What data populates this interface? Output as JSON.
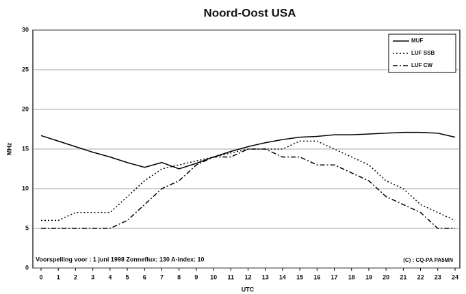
{
  "chart_data": {
    "type": "line",
    "title": "Noord-Oost USA",
    "xlabel": "UTC",
    "ylabel": "MHz",
    "x": [
      0,
      1,
      2,
      3,
      4,
      5,
      6,
      7,
      8,
      9,
      10,
      11,
      12,
      13,
      14,
      15,
      16,
      17,
      18,
      19,
      20,
      21,
      22,
      23,
      24
    ],
    "xlim": [
      0,
      24
    ],
    "xticks": [
      0,
      1,
      2,
      3,
      4,
      5,
      6,
      7,
      8,
      9,
      10,
      11,
      12,
      13,
      14,
      15,
      16,
      17,
      18,
      19,
      20,
      21,
      22,
      23,
      24
    ],
    "ylim": [
      0,
      30
    ],
    "yticks": [
      0,
      5,
      10,
      15,
      20,
      25,
      30
    ],
    "grid": true,
    "legend": "upper right",
    "series": [
      {
        "name": "MUF",
        "color": "#000000",
        "style": "solid",
        "values": [
          16.7,
          16,
          15.3,
          14.6,
          14,
          13.3,
          12.7,
          13.3,
          12.5,
          13.2,
          14,
          14.7,
          15.3,
          15.8,
          16.2,
          16.5,
          16.6,
          16.8,
          16.8,
          16.9,
          17,
          17.1,
          17.1,
          17,
          16.5
        ]
      },
      {
        "name": "LUF SSB",
        "color": "#000000",
        "style": "dotted",
        "values": [
          6,
          6,
          7,
          7,
          7,
          9,
          11,
          12.5,
          13,
          13.5,
          14,
          14.5,
          15,
          15,
          15,
          16,
          16,
          15,
          14,
          13,
          11,
          10,
          8,
          7,
          6
        ]
      },
      {
        "name": "LUF CW",
        "color": "#000000",
        "style": "dashdot",
        "values": [
          5,
          5,
          5,
          5,
          5,
          6,
          8,
          10,
          11,
          13,
          14,
          14,
          15,
          15,
          14,
          14,
          13,
          13,
          12,
          11,
          9,
          8,
          7,
          5,
          5
        ]
      }
    ],
    "annotations": [
      "Voorspelling voor : 1 juni 1998   Zonneflux: 130   A-index: 10",
      "(C) : CQ-PA  PA5MN"
    ]
  }
}
